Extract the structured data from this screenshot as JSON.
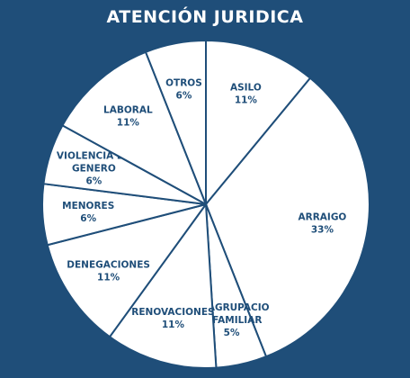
{
  "chart_data": {
    "type": "pie",
    "title": "ATENCIÓN JURIDICA",
    "slices": [
      {
        "label": [
          "ASILO"
        ],
        "pct_label": "11%",
        "value": 11
      },
      {
        "label": [
          "ARRAIGO"
        ],
        "pct_label": "33%",
        "value": 33
      },
      {
        "label": [
          "REAGRUPACIO",
          "N FAMILIAR"
        ],
        "pct_label": "5%",
        "value": 5
      },
      {
        "label": [
          "RENOVACIONES"
        ],
        "pct_label": "11%",
        "value": 11
      },
      {
        "label": [
          "DENEGACIONES"
        ],
        "pct_label": "11%",
        "value": 11
      },
      {
        "label": [
          "MENORES"
        ],
        "pct_label": "6%",
        "value": 6
      },
      {
        "label": [
          "VIOLENCIA DE",
          "GENERO"
        ],
        "pct_label": "6%",
        "value": 6
      },
      {
        "label": [
          "LABORAL"
        ],
        "pct_label": "11%",
        "value": 11
      },
      {
        "label": [
          "OTROS"
        ],
        "pct_label": "6%",
        "value": 6
      }
    ],
    "colors": {
      "background": "#1f4e79",
      "slice_fill": "#ffffff",
      "slice_stroke": "#1f4e79",
      "label_text": "#1f4e79",
      "title_text": "#ffffff"
    }
  }
}
